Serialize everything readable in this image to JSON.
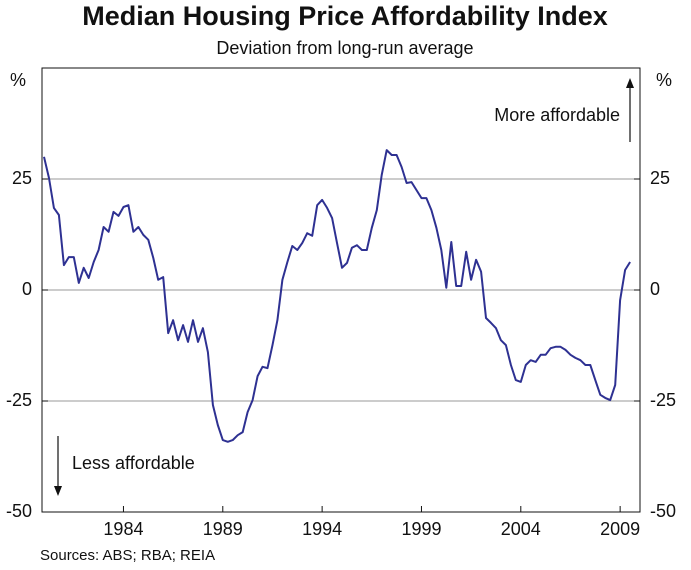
{
  "chart_data": {
    "type": "line",
    "title": "Median Housing Price Affordability Index",
    "subtitle": "Deviation from long-run average",
    "y_unit_label": "%",
    "annotations": [
      "More affordable",
      "Less affordable"
    ],
    "source": "Sources: ABS; RBA; REIA",
    "x": [
      1980,
      1980.25,
      1980.5,
      1980.75,
      1981,
      1981.25,
      1981.5,
      1981.75,
      1982,
      1982.25,
      1982.5,
      1982.75,
      1983,
      1983.25,
      1983.5,
      1983.75,
      1984,
      1984.25,
      1984.5,
      1984.75,
      1985,
      1985.25,
      1985.5,
      1985.75,
      1986,
      1986.25,
      1986.5,
      1986.75,
      1987,
      1987.25,
      1987.5,
      1987.75,
      1988,
      1988.25,
      1988.5,
      1988.75,
      1989,
      1989.25,
      1989.5,
      1989.75,
      1990,
      1990.25,
      1990.5,
      1990.75,
      1991,
      1991.25,
      1991.5,
      1991.75,
      1992,
      1992.25,
      1992.5,
      1992.75,
      1993,
      1993.25,
      1993.5,
      1993.75,
      1994,
      1994.25,
      1994.5,
      1994.75,
      1995,
      1995.25,
      1995.5,
      1995.75,
      1996,
      1996.25,
      1996.5,
      1996.75,
      1997,
      1997.25,
      1997.5,
      1997.75,
      1998,
      1998.25,
      1998.5,
      1998.75,
      1999,
      1999.25,
      1999.5,
      1999.75,
      2000,
      2000.25,
      2000.5,
      2000.75,
      2001,
      2001.25,
      2001.5,
      2001.75,
      2002,
      2002.25,
      2002.5,
      2002.75,
      2003,
      2003.25,
      2003.5,
      2003.75,
      2004,
      2004.25,
      2004.5,
      2004.75,
      2005,
      2005.25,
      2005.5,
      2005.75,
      2006,
      2006.25,
      2006.5,
      2006.75,
      2007,
      2007.25,
      2007.5,
      2007.75,
      2008,
      2008.25,
      2008.5,
      2008.75,
      2009,
      2009.25,
      2009.5
    ],
    "series": [
      {
        "name": "Median Housing Price Affordability Index",
        "color": "#2e3192",
        "values": [
          30,
          25.2,
          18.5,
          16.9,
          5.6,
          7.4,
          7.4,
          1.6,
          5,
          2.7,
          6.3,
          9,
          14.2,
          13.1,
          17.6,
          16.7,
          18.7,
          19.1,
          13.1,
          14.2,
          12.4,
          11.3,
          7.2,
          2.3,
          2.9,
          -9.7,
          -6.8,
          -11.3,
          -7.9,
          -11.7,
          -6.8,
          -11.7,
          -8.6,
          -14,
          -25.9,
          -30.4,
          -33.8,
          -34.2,
          -33.8,
          -32.7,
          -32,
          -27.5,
          -24.8,
          -19.4,
          -17.3,
          -17.6,
          -12.4,
          -6.8,
          2.3,
          6.3,
          9.9,
          9,
          10.6,
          12.8,
          12.2,
          19.1,
          20.3,
          18.5,
          16.2,
          10.6,
          5,
          6.1,
          9.5,
          10.1,
          9,
          9,
          14,
          18,
          25.9,
          31.5,
          30.4,
          30.4,
          27.7,
          24.1,
          24.3,
          22.5,
          20.7,
          20.7,
          18,
          14,
          9,
          0.5,
          10.8,
          0.9,
          0.9,
          8.6,
          2.3,
          6.8,
          4.1,
          -6.3,
          -7.4,
          -8.6,
          -11.3,
          -12.4,
          -16.9,
          -20.3,
          -20.7,
          -16.9,
          -15.8,
          -16.2,
          -14.6,
          -14.6,
          -13.1,
          -12.8,
          -12.8,
          -13.5,
          -14.6,
          -15.3,
          -15.8,
          -16.9,
          -16.9,
          -20.3,
          -23.6,
          -24.3,
          -24.8,
          -21.4,
          -2.3,
          4.5,
          6.3
        ]
      }
    ],
    "xlim": [
      1979.9,
      2010
    ],
    "xticks": [
      1984,
      1989,
      1994,
      1999,
      2004,
      2009
    ],
    "ylim": [
      -50,
      50
    ],
    "yticks": [
      -50,
      -25,
      0,
      25
    ],
    "grid": true
  }
}
